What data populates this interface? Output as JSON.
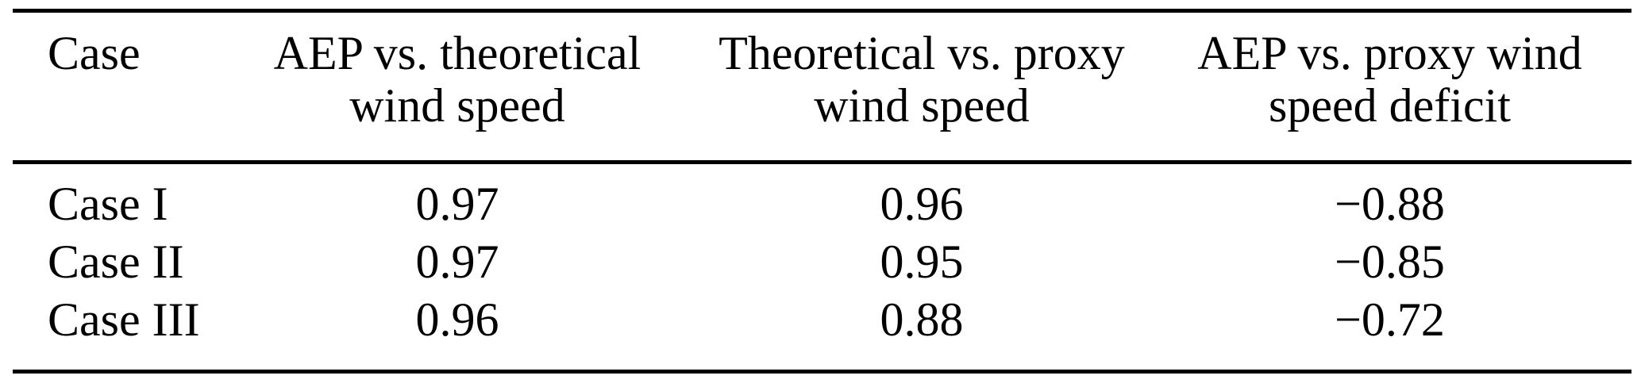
{
  "table": {
    "description": "Paper table comparing AEP and wind-speed correlations across cases",
    "columns": [
      {
        "header": "Case"
      },
      {
        "header": "AEP vs. theoretical\nwind speed"
      },
      {
        "header": "Theoretical vs. proxy\nwind speed"
      },
      {
        "header": "AEP vs. proxy wind\nspeed deficit"
      }
    ],
    "rows": [
      {
        "case": "Case I",
        "values": [
          "0.97",
          "0.96",
          "−0.88"
        ]
      },
      {
        "case": "Case II",
        "values": [
          "0.97",
          "0.95",
          "−0.85"
        ]
      },
      {
        "case": "Case III",
        "values": [
          "0.96",
          "0.88",
          "−0.72"
        ]
      }
    ]
  },
  "colors": {
    "text": "#000000",
    "background": "#ffffff",
    "rule": "#000000"
  }
}
